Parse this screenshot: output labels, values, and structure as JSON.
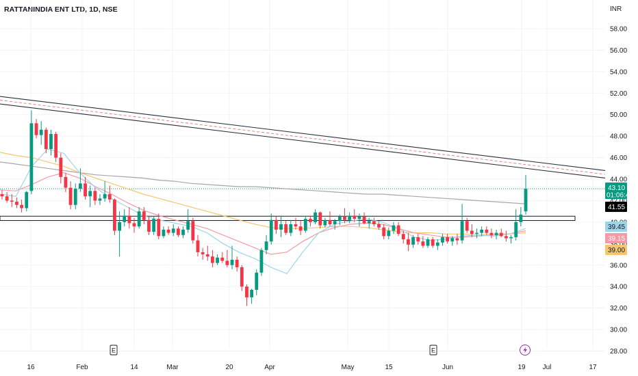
{
  "header": {
    "title": "RATTANINDIA ENT LTD, 1D, NSE"
  },
  "chart_data": {
    "type": "candlestick",
    "currency": "INR",
    "ylim": [
      27.5,
      59.5
    ],
    "y_ticks": [
      "58.00",
      "56.00",
      "54.00",
      "52.00",
      "50.00",
      "48.00",
      "46.00",
      "44.00",
      "42.00",
      "40.00",
      "38.00",
      "36.00",
      "34.00",
      "32.00",
      "30.00",
      "28.00"
    ],
    "x_ticks": [
      "16",
      "Feb",
      "14",
      "Mar",
      "20",
      "Apr",
      "May",
      "15",
      "Jun",
      "19",
      "Jul",
      "17"
    ],
    "candles": [
      [
        42.6,
        43.0,
        42.1,
        42.4
      ],
      [
        42.4,
        42.8,
        41.8,
        42.0
      ],
      [
        42.0,
        42.6,
        41.4,
        41.9
      ],
      [
        41.9,
        42.3,
        41.3,
        41.6
      ],
      [
        41.6,
        42.1,
        40.9,
        41.3
      ],
      [
        41.3,
        42.9,
        41.0,
        42.8
      ],
      [
        42.9,
        50.4,
        42.6,
        49.2
      ],
      [
        49.2,
        49.6,
        47.8,
        48.1
      ],
      [
        48.1,
        49.4,
        47.2,
        48.6
      ],
      [
        48.6,
        48.8,
        46.4,
        46.8
      ],
      [
        46.8,
        48.6,
        46.2,
        48.2
      ],
      [
        48.2,
        48.4,
        45.6,
        46.0
      ],
      [
        46.0,
        46.4,
        43.6,
        44.2
      ],
      [
        44.2,
        44.6,
        42.8,
        43.2
      ],
      [
        43.2,
        43.8,
        41.2,
        41.6
      ],
      [
        41.6,
        43.6,
        41.2,
        43.1
      ],
      [
        43.1,
        45.0,
        42.8,
        43.6
      ],
      [
        43.6,
        44.2,
        42.1,
        42.4
      ],
      [
        42.4,
        43.4,
        41.4,
        42.9
      ],
      [
        42.9,
        43.2,
        41.6,
        42.0
      ],
      [
        42.0,
        42.6,
        41.6,
        42.2
      ],
      [
        42.2,
        43.8,
        41.9,
        42.6
      ],
      [
        42.6,
        43.4,
        41.8,
        42.1
      ],
      [
        42.1,
        42.2,
        38.8,
        39.2
      ],
      [
        39.2,
        41.0,
        36.8,
        40.0
      ],
      [
        40.0,
        41.2,
        39.6,
        40.6
      ],
      [
        40.6,
        41.4,
        39.4,
        39.9
      ],
      [
        39.9,
        40.4,
        39.0,
        39.6
      ],
      [
        39.6,
        41.4,
        39.4,
        41.0
      ],
      [
        41.0,
        41.4,
        39.8,
        40.2
      ],
      [
        40.2,
        40.6,
        38.8,
        39.1
      ],
      [
        39.1,
        40.5,
        38.8,
        40.3
      ],
      [
        40.3,
        40.8,
        38.4,
        38.7
      ],
      [
        38.7,
        39.6,
        38.5,
        39.3
      ],
      [
        39.3,
        39.6,
        38.8,
        39.0
      ],
      [
        39.0,
        39.8,
        38.7,
        39.4
      ],
      [
        39.4,
        39.6,
        38.6,
        38.8
      ],
      [
        38.8,
        39.6,
        38.5,
        39.3
      ],
      [
        39.3,
        41.2,
        39.0,
        40.1
      ],
      [
        40.1,
        40.4,
        38.0,
        38.3
      ],
      [
        38.3,
        38.8,
        36.8,
        37.2
      ],
      [
        37.2,
        37.6,
        36.5,
        37.0
      ],
      [
        37.0,
        37.8,
        36.4,
        36.8
      ],
      [
        36.8,
        37.4,
        35.8,
        36.2
      ],
      [
        36.2,
        37.0,
        36.0,
        36.7
      ],
      [
        36.7,
        37.2,
        36.2,
        36.4
      ],
      [
        36.4,
        37.4,
        35.8,
        36.0
      ],
      [
        36.0,
        37.8,
        35.6,
        36.5
      ],
      [
        36.5,
        36.8,
        35.4,
        35.8
      ],
      [
        35.8,
        36.0,
        33.6,
        34.0
      ],
      [
        34.0,
        34.2,
        32.2,
        33.0
      ],
      [
        33.0,
        33.8,
        32.4,
        33.7
      ],
      [
        33.7,
        35.6,
        33.2,
        35.3
      ],
      [
        35.3,
        37.6,
        35.0,
        37.4
      ],
      [
        37.4,
        38.8,
        37.0,
        38.2
      ],
      [
        38.2,
        40.8,
        37.9,
        40.2
      ],
      [
        40.2,
        40.5,
        38.9,
        39.3
      ],
      [
        39.3,
        40.6,
        38.6,
        39.8
      ],
      [
        39.8,
        40.1,
        38.8,
        39.0
      ],
      [
        39.0,
        40.2,
        38.7,
        39.8
      ],
      [
        39.8,
        40.4,
        39.3,
        39.6
      ],
      [
        39.6,
        40.1,
        38.8,
        39.2
      ],
      [
        39.2,
        40.6,
        39.0,
        40.3
      ],
      [
        40.3,
        40.6,
        39.6,
        40.0
      ],
      [
        40.0,
        41.2,
        39.8,
        40.9
      ],
      [
        40.9,
        41.0,
        39.4,
        39.7
      ],
      [
        39.7,
        40.4,
        39.5,
        40.2
      ],
      [
        40.2,
        41.0,
        39.6,
        39.8
      ],
      [
        39.8,
        40.3,
        39.3,
        40.1
      ],
      [
        40.1,
        40.7,
        39.7,
        40.5
      ],
      [
        40.5,
        41.3,
        39.9,
        40.2
      ],
      [
        40.2,
        40.9,
        39.9,
        40.6
      ],
      [
        40.6,
        41.2,
        40.0,
        40.3
      ],
      [
        40.3,
        40.8,
        39.6,
        40.5
      ],
      [
        40.5,
        40.9,
        39.8,
        39.9
      ],
      [
        39.9,
        40.4,
        39.4,
        40.1
      ],
      [
        40.1,
        40.4,
        39.6,
        39.8
      ],
      [
        39.8,
        40.1,
        39.3,
        39.5
      ],
      [
        39.5,
        39.8,
        38.4,
        38.7
      ],
      [
        38.7,
        39.5,
        38.4,
        39.2
      ],
      [
        39.2,
        40.0,
        38.9,
        39.7
      ],
      [
        39.7,
        40.0,
        38.7,
        38.9
      ],
      [
        38.9,
        39.2,
        38.0,
        38.4
      ],
      [
        38.4,
        39.0,
        37.3,
        37.9
      ],
      [
        37.9,
        38.8,
        37.6,
        38.6
      ],
      [
        38.6,
        38.9,
        37.9,
        38.2
      ],
      [
        38.2,
        38.7,
        37.6,
        37.8
      ],
      [
        37.8,
        38.6,
        37.6,
        38.4
      ],
      [
        38.4,
        38.6,
        37.6,
        37.8
      ],
      [
        37.8,
        38.4,
        37.4,
        38.1
      ],
      [
        38.1,
        38.9,
        37.8,
        38.6
      ],
      [
        38.6,
        38.9,
        38.0,
        38.2
      ],
      [
        38.2,
        38.7,
        37.8,
        38.5
      ],
      [
        38.5,
        38.9,
        37.9,
        38.3
      ],
      [
        38.3,
        41.7,
        38.0,
        40.1
      ],
      [
        40.1,
        40.4,
        39.0,
        39.2
      ],
      [
        39.2,
        39.8,
        38.6,
        38.9
      ],
      [
        38.9,
        39.4,
        38.5,
        39.0
      ],
      [
        39.0,
        39.6,
        38.7,
        39.3
      ],
      [
        39.3,
        39.6,
        38.8,
        39.0
      ],
      [
        39.0,
        39.4,
        38.5,
        38.8
      ],
      [
        38.8,
        39.3,
        38.4,
        39.0
      ],
      [
        39.0,
        39.4,
        38.6,
        38.7
      ],
      [
        38.7,
        39.2,
        38.2,
        38.5
      ],
      [
        38.5,
        38.8,
        38.0,
        38.6
      ],
      [
        38.6,
        41.2,
        38.3,
        40.0
      ],
      [
        40.0,
        41.4,
        39.6,
        40.7
      ],
      [
        41.0,
        44.4,
        40.7,
        43.1
      ]
    ],
    "series": [
      {
        "name": "",
        "color": "#a6a6a6",
        "values": [
          45.6,
          45.4,
          45.2,
          45.0,
          44.8,
          44.6,
          44.4,
          44.3,
          44.2,
          44.1,
          43.9,
          43.8,
          43.6,
          43.5,
          43.4,
          43.3,
          43.3,
          43.2,
          43.1,
          43.0,
          42.9,
          42.8,
          42.7,
          42.6,
          42.6,
          42.5,
          42.4,
          42.3,
          42.2,
          42.1,
          42.0,
          41.9,
          41.8,
          41.7
        ]
      },
      {
        "name": "",
        "color": "#f6c66e",
        "values": [
          46.5,
          46.2,
          46.0,
          45.6,
          45.2,
          44.6,
          44.1,
          43.6,
          43.1,
          42.6,
          42.2,
          41.8,
          41.4,
          41.0,
          40.6,
          40.2,
          39.8,
          39.5,
          39.4,
          39.4,
          39.5,
          39.6,
          39.6,
          39.5,
          39.3,
          39.1,
          39.0,
          39.0,
          38.9,
          38.9,
          38.8,
          38.9,
          38.9,
          39.0
        ]
      },
      {
        "name": "",
        "color": "#f59aa5",
        "values": [
          43.0,
          42.9,
          43.5,
          44.2,
          44.6,
          44.1,
          43.3,
          42.6,
          41.8,
          41.1,
          40.6,
          40.2,
          39.8,
          39.4,
          38.8,
          38.2,
          37.6,
          37.0,
          37.2,
          38.2,
          39.0,
          39.5,
          39.8,
          39.9,
          39.8,
          39.4,
          39.0,
          38.8,
          38.6,
          38.6,
          38.7,
          38.8,
          38.9,
          39.2
        ]
      },
      {
        "name": "",
        "color": "#9fd4e8",
        "values": [
          42.6,
          42.4,
          45.2,
          46.8,
          46.4,
          44.6,
          43.2,
          42.2,
          41.4,
          40.6,
          40.2,
          39.9,
          39.6,
          39.0,
          38.0,
          37.2,
          36.6,
          35.8,
          35.2,
          37.2,
          39.0,
          39.8,
          40.1,
          40.3,
          40.0,
          39.4,
          38.6,
          38.3,
          38.4,
          38.7,
          38.8,
          38.7,
          38.9,
          39.4
        ]
      }
    ],
    "channel": {
      "upper_start": 51.7,
      "upper_end": 44.8,
      "lower_start": 51.0,
      "lower_end": 44.1,
      "mid_start": 51.35,
      "mid_end": 44.45
    },
    "support_band": {
      "top": 40.55,
      "bottom": 40.15
    },
    "last_close_line": 43.1,
    "price_labels": [
      {
        "value": "43.10",
        "bg": "#089981",
        "fg": "#ffffff",
        "extra": "01:06:40"
      },
      {
        "value": "41.55",
        "bg": "#000000",
        "fg": "#ffffff"
      },
      {
        "value": "39.45",
        "bg": "#9fd4e8",
        "fg": "#131722"
      },
      {
        "value": "39.15",
        "bg": "#f59aa5",
        "fg": "#ffffff"
      },
      {
        "value": "39.00",
        "bg": "#f6c66e",
        "fg": "#131722"
      }
    ],
    "markers": [
      {
        "label": "E",
        "after": "Feb"
      },
      {
        "label": "E",
        "after": "May"
      }
    ],
    "up_color": "#089981",
    "down_color": "#f23645"
  }
}
